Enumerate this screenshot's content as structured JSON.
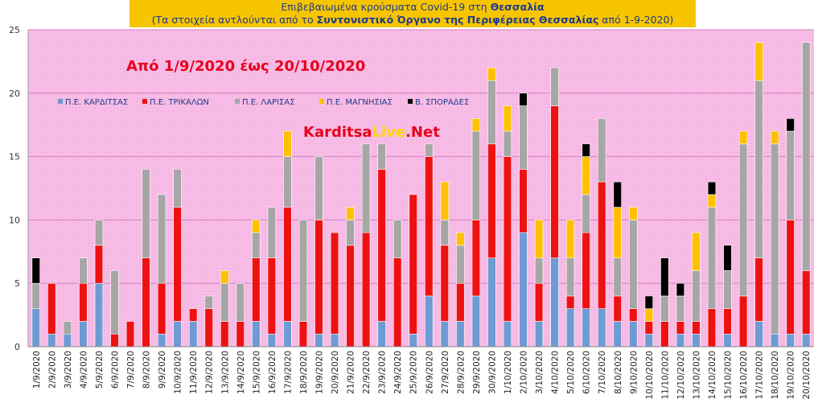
{
  "header": {
    "line1_prefix": "Επιβεβαιωμένα κρούσματα Covid-19 στη ",
    "line1_bold": "Θεσσαλία",
    "line2_prefix": "(Τα στοιχεία αντλούνται από το ",
    "line2_bold": "Συντονιστικό Όργανο της Περιφέρειας Θεσσαλίας",
    "line2_suffix": " από 1-9-2020)"
  },
  "overlay": {
    "date_range": "Από 1/9/2020 έως 20/10/2020",
    "brand_part1": "Karditsa",
    "brand_part2": "Live",
    "brand_part3": ".Net"
  },
  "colors": {
    "plot_bg": "#f7bde6",
    "karditsa": "#6e9bd3",
    "trikala": "#ee1111",
    "larisa": "#a6a6a6",
    "magnisia": "#ffc000",
    "sporades": "#000000",
    "title_bg": "#f6c500",
    "date_range": "#e8001c",
    "brand_red": "#e8001c",
    "brand_yellow": "#ffd700"
  },
  "chart_data": {
    "type": "bar",
    "stacked": true,
    "ylim": [
      0,
      25
    ],
    "yticks": [
      0,
      5,
      10,
      15,
      20,
      25
    ],
    "grid": true,
    "legend_position": "top-left",
    "categories": [
      "1/9/2020",
      "2/9/2020",
      "3/9/2020",
      "4/9/2020",
      "5/9/2020",
      "6/9/2020",
      "7/9/2020",
      "8/9/2020",
      "9/9/2020",
      "10/9/2020",
      "11/9/2020",
      "12/9/2020",
      "13/9/2020",
      "14/9/2020",
      "15/9/2020",
      "16/9/2020",
      "17/9/2020",
      "18/9/2020",
      "19/9/2020",
      "20/9/2020",
      "21/9/2020",
      "22/9/2020",
      "23/9/2020",
      "24/9/2020",
      "25/9/2020",
      "26/9/2020",
      "27/9/2020",
      "28/9/2020",
      "29/9/2020",
      "30/9/2020",
      "1/10/2020",
      "2/10/2020",
      "3/10/2020",
      "4/10/2020",
      "5/10/2020",
      "6/10/2020",
      "7/10/2020",
      "8/10/2020",
      "9/10/2020",
      "10/10/2020",
      "11/10/2020",
      "12/10/2020",
      "13/10/2020",
      "14/10/2020",
      "15/10/2020",
      "16/10/2020",
      "17/10/2020",
      "18/10/2020",
      "19/10/2020",
      "20/10/2020"
    ],
    "series": [
      {
        "name": "Π.Ε. ΚΑΡΔΙΤΣΑΣ",
        "color": "#6e9bd3",
        "values": [
          3,
          1,
          1,
          2,
          5,
          0,
          0,
          0,
          1,
          2,
          2,
          0,
          0,
          0,
          2,
          1,
          2,
          0,
          1,
          1,
          0,
          0,
          2,
          0,
          1,
          4,
          2,
          2,
          4,
          7,
          2,
          9,
          2,
          7,
          3,
          3,
          3,
          2,
          2,
          1,
          0,
          1,
          1,
          0,
          1,
          0,
          2,
          1,
          1,
          1
        ]
      },
      {
        "name": "Π.Ε. ΤΡΙΚΑΛΩΝ",
        "color": "#ee1111",
        "values": [
          0,
          4,
          0,
          3,
          3,
          1,
          2,
          7,
          4,
          9,
          1,
          3,
          2,
          2,
          5,
          6,
          9,
          2,
          9,
          8,
          8,
          9,
          12,
          7,
          11,
          11,
          6,
          3,
          6,
          9,
          13,
          5,
          3,
          12,
          1,
          6,
          10,
          2,
          1,
          1,
          2,
          1,
          1,
          3,
          2,
          4,
          5,
          0,
          9,
          5
        ]
      },
      {
        "name": "Π.Ε. ΛΑΡΙΣΑΣ",
        "color": "#a6a6a6",
        "values": [
          2,
          0,
          1,
          2,
          2,
          5,
          0,
          7,
          7,
          3,
          0,
          1,
          3,
          3,
          2,
          4,
          4,
          8,
          5,
          0,
          2,
          7,
          2,
          3,
          0,
          1,
          2,
          3,
          7,
          5,
          2,
          5,
          2,
          3,
          3,
          3,
          5,
          3,
          7,
          0,
          2,
          2,
          4,
          8,
          3,
          12,
          14,
          15,
          7,
          18
        ]
      },
      {
        "name": "Π.Ε. ΜΑΓΝΗΣΙΑΣ",
        "color": "#ffc000",
        "values": [
          0,
          0,
          0,
          0,
          0,
          0,
          0,
          0,
          0,
          0,
          0,
          0,
          1,
          0,
          1,
          0,
          2,
          0,
          0,
          0,
          1,
          0,
          0,
          0,
          0,
          0,
          3,
          1,
          1,
          1,
          2,
          0,
          3,
          0,
          3,
          3,
          0,
          4,
          1,
          1,
          0,
          0,
          3,
          1,
          0,
          1,
          3,
          1,
          0,
          0
        ]
      },
      {
        "name": "Β. ΣΠΟΡΑΔΕΣ",
        "color": "#000000",
        "values": [
          2,
          0,
          0,
          0,
          0,
          0,
          0,
          0,
          0,
          0,
          0,
          0,
          0,
          0,
          0,
          0,
          0,
          0,
          0,
          0,
          0,
          0,
          0,
          0,
          0,
          0,
          0,
          0,
          0,
          0,
          0,
          1,
          0,
          0,
          0,
          1,
          0,
          2,
          0,
          1,
          3,
          1,
          0,
          1,
          2,
          0,
          0,
          0,
          1,
          0
        ]
      }
    ]
  }
}
